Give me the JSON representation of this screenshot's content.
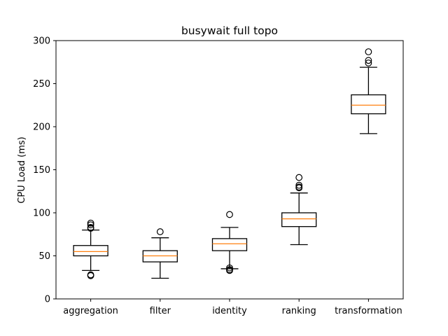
{
  "chart_data": {
    "type": "box",
    "title": "busywait full topo",
    "xlabel": "",
    "ylabel": "CPU Load (ms)",
    "ylim": [
      0,
      300
    ],
    "yticks": [
      0,
      50,
      100,
      150,
      200,
      250,
      300
    ],
    "grid": false,
    "categories": [
      "aggregation",
      "filter",
      "identity",
      "ranking",
      "transformation"
    ],
    "boxes": [
      {
        "category": "aggregation",
        "whisker_low": 33,
        "q1": 50,
        "median": 55,
        "q3": 62,
        "whisker_high": 80,
        "outliers": [
          27,
          28,
          82,
          83,
          86,
          88
        ]
      },
      {
        "category": "filter",
        "whisker_low": 24,
        "q1": 43,
        "median": 50,
        "q3": 56,
        "whisker_high": 71,
        "outliers": [
          78
        ]
      },
      {
        "category": "identity",
        "whisker_low": 35,
        "q1": 56,
        "median": 64,
        "q3": 70,
        "whisker_high": 83,
        "outliers": [
          33,
          34,
          36,
          98
        ]
      },
      {
        "category": "ranking",
        "whisker_low": 63,
        "q1": 84,
        "median": 93,
        "q3": 100,
        "whisker_high": 123,
        "outliers": [
          129,
          130,
          132,
          141
        ]
      },
      {
        "category": "transformation",
        "whisker_low": 192,
        "q1": 215,
        "median": 225,
        "q3": 237,
        "whisker_high": 269,
        "outliers": [
          274,
          277,
          287
        ]
      }
    ],
    "colors": {
      "box": "#000000",
      "median": "#ff7f0e",
      "outlier": "#000000"
    }
  }
}
